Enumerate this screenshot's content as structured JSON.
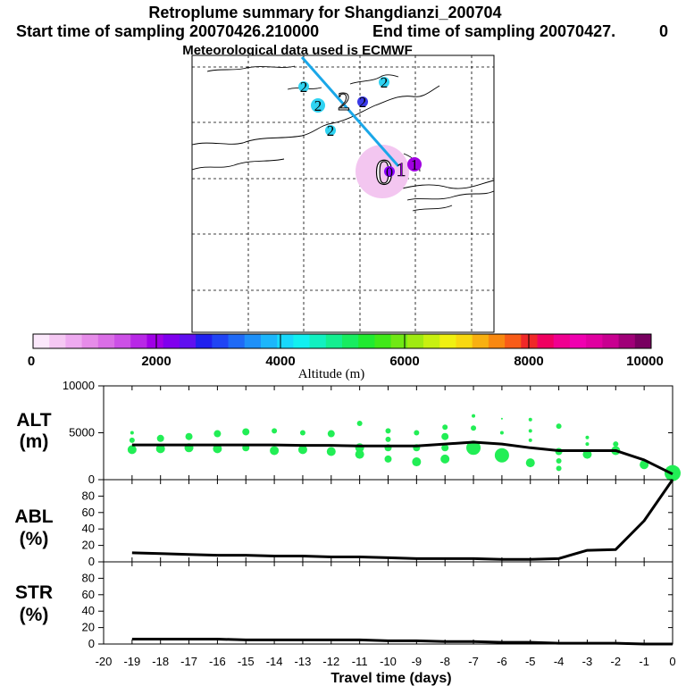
{
  "header": {
    "title": "Retroplume summary for Shangdianzi_200704",
    "start_label": "Start time of sampling 20070426.210000",
    "end_label": "End time of sampling 20070427.",
    "end_suffix": "0",
    "met_label": "Meteorological data used is ECMWF"
  },
  "map": {
    "cluster_labels": [
      {
        "id": 1,
        "label": "2",
        "color": "#2fd3f2"
      },
      {
        "id": 2,
        "label": "2",
        "color": "#2fd3f2"
      },
      {
        "id": 3,
        "label": "2",
        "color": "#2fd3f2"
      },
      {
        "id": 4,
        "label": "2",
        "color": "#ffffff"
      },
      {
        "id": 5,
        "label": "2",
        "color": "#3a3ae8"
      },
      {
        "id": 6,
        "label": "2",
        "color": "#2fd3f2"
      },
      {
        "id": 7,
        "label": "1",
        "color": "#a000e0"
      },
      {
        "id": 8,
        "label": "0",
        "color": "#ffffff"
      },
      {
        "id": 9,
        "label": "1",
        "color": "#a000e0"
      },
      {
        "id": 10,
        "label": "0",
        "color": "#8a00ff"
      }
    ],
    "trajectory_color": "#1aa7e8",
    "plume_color": "#f3c6f0"
  },
  "colorbar": {
    "label": "Altitude (m)",
    "tick_labels": [
      "0",
      "2000",
      "4000",
      "6000",
      "8000",
      "10000"
    ],
    "colors": [
      "#fbe8fb",
      "#f5c8f3",
      "#eeaaf0",
      "#e68ce9",
      "#da6ee6",
      "#cc50e6",
      "#b828e6",
      "#a000e6",
      "#8000ee",
      "#6010f0",
      "#2020ee",
      "#2044f4",
      "#1f6af6",
      "#1e90f8",
      "#1cb6fb",
      "#18d8fc",
      "#12f0f0",
      "#12f0c0",
      "#14ee90",
      "#18ec60",
      "#20ea30",
      "#40e818",
      "#70e814",
      "#a0ea12",
      "#c8f010",
      "#f0f010",
      "#f8d810",
      "#f8b010",
      "#f88810",
      "#f85c18",
      "#f02828",
      "#f00060",
      "#f00090",
      "#f000b0",
      "#e000a0",
      "#c80090",
      "#a00078",
      "#780060"
    ]
  },
  "chart_data": [
    {
      "type": "line",
      "name": "ALT",
      "ylabel": "ALT\n(m)",
      "ylabel_lines": [
        "ALT",
        "(m)"
      ],
      "x": [
        -19,
        -18,
        -17,
        -16,
        -15,
        -14,
        -13,
        -12,
        -11,
        -10,
        -9,
        -8,
        -7,
        -6,
        -5,
        -4,
        -3,
        -2,
        -1,
        0
      ],
      "values": [
        3700,
        3700,
        3700,
        3700,
        3700,
        3700,
        3650,
        3650,
        3600,
        3600,
        3600,
        3800,
        4000,
        3800,
        3400,
        3100,
        3100,
        3100,
        2100,
        600
      ],
      "ylim": [
        0,
        10000
      ],
      "ytick_labels": [
        "0",
        "5000",
        "10000"
      ],
      "xlim": [
        -20,
        0
      ],
      "scatter": {
        "color": "#22ee55",
        "points": [
          {
            "x": -19,
            "y": 5000,
            "s": 2
          },
          {
            "x": -19,
            "y": 4200,
            "s": 3
          },
          {
            "x": -19,
            "y": 3200,
            "s": 5
          },
          {
            "x": -18,
            "y": 4400,
            "s": 4
          },
          {
            "x": -18,
            "y": 3300,
            "s": 5
          },
          {
            "x": -17,
            "y": 4600,
            "s": 4
          },
          {
            "x": -17,
            "y": 3400,
            "s": 5
          },
          {
            "x": -16,
            "y": 4900,
            "s": 4
          },
          {
            "x": -16,
            "y": 3300,
            "s": 5
          },
          {
            "x": -15,
            "y": 5100,
            "s": 4
          },
          {
            "x": -15,
            "y": 3400,
            "s": 4
          },
          {
            "x": -14,
            "y": 5200,
            "s": 3
          },
          {
            "x": -14,
            "y": 3100,
            "s": 5
          },
          {
            "x": -13,
            "y": 5000,
            "s": 3
          },
          {
            "x": -13,
            "y": 3200,
            "s": 5
          },
          {
            "x": -12,
            "y": 4900,
            "s": 4
          },
          {
            "x": -12,
            "y": 3000,
            "s": 5
          },
          {
            "x": -11,
            "y": 6000,
            "s": 3
          },
          {
            "x": -11,
            "y": 3400,
            "s": 5
          },
          {
            "x": -11,
            "y": 2700,
            "s": 5
          },
          {
            "x": -10,
            "y": 5200,
            "s": 3
          },
          {
            "x": -10,
            "y": 4300,
            "s": 3
          },
          {
            "x": -10,
            "y": 3400,
            "s": 4
          },
          {
            "x": -10,
            "y": 2200,
            "s": 4
          },
          {
            "x": -9,
            "y": 5000,
            "s": 3
          },
          {
            "x": -9,
            "y": 3400,
            "s": 4
          },
          {
            "x": -9,
            "y": 1900,
            "s": 5
          },
          {
            "x": -8,
            "y": 5600,
            "s": 3
          },
          {
            "x": -8,
            "y": 4600,
            "s": 4
          },
          {
            "x": -8,
            "y": 3400,
            "s": 4
          },
          {
            "x": -8,
            "y": 2200,
            "s": 5
          },
          {
            "x": -7,
            "y": 6800,
            "s": 2
          },
          {
            "x": -7,
            "y": 5500,
            "s": 3
          },
          {
            "x": -7,
            "y": 3400,
            "s": 8
          },
          {
            "x": -6,
            "y": 6500,
            "s": 1
          },
          {
            "x": -6,
            "y": 5000,
            "s": 2
          },
          {
            "x": -6,
            "y": 2600,
            "s": 8
          },
          {
            "x": -5,
            "y": 6400,
            "s": 2
          },
          {
            "x": -5,
            "y": 5200,
            "s": 2
          },
          {
            "x": -5,
            "y": 4200,
            "s": 2
          },
          {
            "x": -5,
            "y": 1800,
            "s": 5
          },
          {
            "x": -4,
            "y": 5700,
            "s": 3
          },
          {
            "x": -4,
            "y": 3000,
            "s": 4
          },
          {
            "x": -4,
            "y": 2000,
            "s": 3
          },
          {
            "x": -4,
            "y": 1200,
            "s": 3
          },
          {
            "x": -3,
            "y": 4500,
            "s": 2
          },
          {
            "x": -3,
            "y": 3800,
            "s": 2
          },
          {
            "x": -3,
            "y": 2700,
            "s": 5
          },
          {
            "x": -2,
            "y": 3800,
            "s": 3
          },
          {
            "x": -2,
            "y": 3100,
            "s": 5
          },
          {
            "x": -1,
            "y": 1600,
            "s": 5
          },
          {
            "x": 0,
            "y": 700,
            "s": 9
          }
        ]
      }
    },
    {
      "type": "line",
      "name": "ABL",
      "ylabel": "ABL\n(%)",
      "ylabel_lines": [
        "ABL",
        "(%)"
      ],
      "x": [
        -19,
        -18,
        -17,
        -16,
        -15,
        -14,
        -13,
        -12,
        -11,
        -10,
        -9,
        -8,
        -7,
        -6,
        -5,
        -4,
        -3,
        -2,
        -1,
        0
      ],
      "values": [
        11,
        10,
        9,
        8,
        8,
        7,
        7,
        6,
        6,
        5,
        4,
        4,
        4,
        3,
        3,
        4,
        14,
        15,
        50,
        100
      ],
      "ylim": [
        0,
        100
      ],
      "ytick_labels": [
        "0",
        "20",
        "40",
        "60",
        "80"
      ],
      "xlim": [
        -20,
        0
      ]
    },
    {
      "type": "line",
      "name": "STR",
      "ylabel": "STR\n(%)",
      "ylabel_lines": [
        "STR",
        "(%)"
      ],
      "x": [
        -19,
        -18,
        -17,
        -16,
        -15,
        -14,
        -13,
        -12,
        -11,
        -10,
        -9,
        -8,
        -7,
        -6,
        -5,
        -4,
        -3,
        -2,
        -1,
        0
      ],
      "values": [
        6,
        6,
        6,
        6,
        5,
        5,
        5,
        5,
        5,
        4,
        4,
        3,
        3,
        2,
        2,
        1,
        1,
        1,
        0,
        0
      ],
      "ylim": [
        0,
        100
      ],
      "ytick_labels": [
        "0",
        "20",
        "40",
        "60",
        "80"
      ],
      "xlim": [
        -20,
        0
      ],
      "xlabel": "Travel time (days)",
      "xtick_labels": [
        "-20",
        "-19",
        "-18",
        "-17",
        "-16",
        "-15",
        "-14",
        "-13",
        "-12",
        "-11",
        "-10",
        "-9",
        "-8",
        "-7",
        "-6",
        "-5",
        "-4",
        "-3",
        "-2",
        "-1",
        "0"
      ]
    }
  ]
}
